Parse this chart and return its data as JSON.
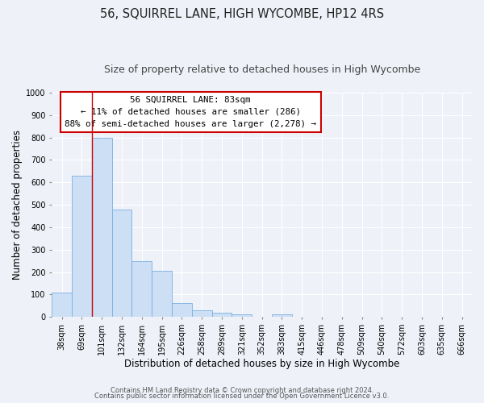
{
  "title": "56, SQUIRREL LANE, HIGH WYCOMBE, HP12 4RS",
  "subtitle": "Size of property relative to detached houses in High Wycombe",
  "xlabel": "Distribution of detached houses by size in High Wycombe",
  "ylabel": "Number of detached properties",
  "bar_labels": [
    "38sqm",
    "69sqm",
    "101sqm",
    "132sqm",
    "164sqm",
    "195sqm",
    "226sqm",
    "258sqm",
    "289sqm",
    "321sqm",
    "352sqm",
    "383sqm",
    "415sqm",
    "446sqm",
    "478sqm",
    "509sqm",
    "540sqm",
    "572sqm",
    "603sqm",
    "635sqm",
    "666sqm"
  ],
  "bar_values": [
    110,
    630,
    800,
    480,
    250,
    205,
    63,
    30,
    20,
    13,
    0,
    10,
    0,
    0,
    0,
    0,
    0,
    0,
    0,
    0,
    0
  ],
  "bar_color": "#ccdff5",
  "bar_edge_color": "#7aafe0",
  "vline_color": "#cc0000",
  "ylim": [
    0,
    1000
  ],
  "yticks": [
    0,
    100,
    200,
    300,
    400,
    500,
    600,
    700,
    800,
    900,
    1000
  ],
  "annotation_title": "56 SQUIRREL LANE: 83sqm",
  "annotation_line1": "← 11% of detached houses are smaller (286)",
  "annotation_line2": "88% of semi-detached houses are larger (2,278) →",
  "annotation_box_color": "#ffffff",
  "annotation_box_edge": "#cc0000",
  "footer_line1": "Contains HM Land Registry data © Crown copyright and database right 2024.",
  "footer_line2": "Contains public sector information licensed under the Open Government Licence v3.0.",
  "bg_color": "#eef2f8",
  "axes_bg_color": "#eef2f8",
  "grid_color": "#ffffff",
  "title_fontsize": 10.5,
  "subtitle_fontsize": 9,
  "axis_label_fontsize": 8.5,
  "tick_fontsize": 7,
  "annotation_fontsize": 7.8,
  "footer_fontsize": 6
}
